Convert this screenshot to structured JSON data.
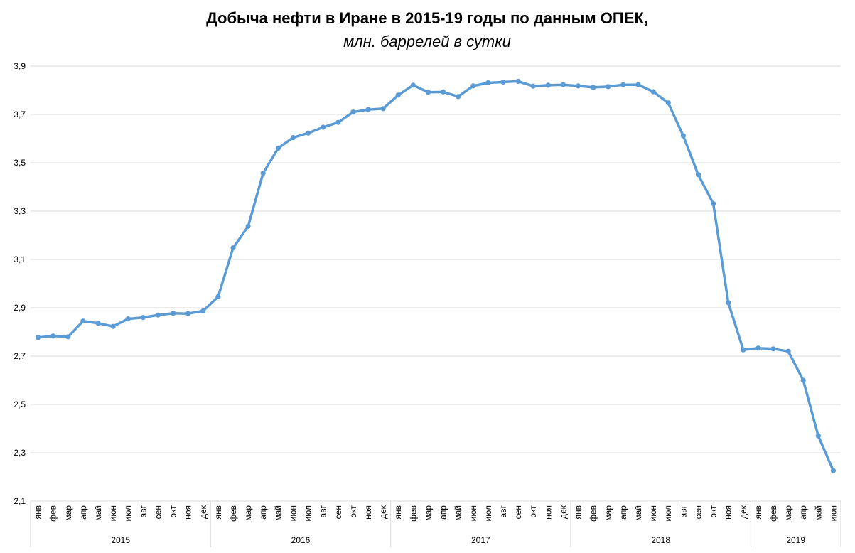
{
  "chart_data": {
    "type": "line",
    "title": "Добыча нефти в Иране в 2015-19 годы по данным ОПЕК,",
    "subtitle": "млн. баррелей в сутки",
    "xlabel": "",
    "ylabel": "",
    "ylim": [
      2.1,
      3.9
    ],
    "yticks": [
      2.1,
      2.3,
      2.5,
      2.7,
      2.9,
      3.1,
      3.3,
      3.5,
      3.7,
      3.9
    ],
    "ytick_labels": [
      "2,1",
      "2,3",
      "2,5",
      "2,7",
      "2,9",
      "3,1",
      "3,3",
      "3,5",
      "3,7",
      "3,9"
    ],
    "grid": true,
    "legend": "none",
    "line_color": "#5b9bd5",
    "groups": [
      {
        "label": "2015",
        "months": [
          "янв",
          "фев",
          "мар",
          "апр",
          "май",
          "июн",
          "июл",
          "авг",
          "сен",
          "окт",
          "ноя",
          "дек"
        ]
      },
      {
        "label": "2016",
        "months": [
          "янв",
          "фев",
          "мар",
          "апр",
          "май",
          "июн",
          "июл",
          "авг",
          "сен",
          "окт",
          "ноя",
          "дек"
        ]
      },
      {
        "label": "2017",
        "months": [
          "янв",
          "фев",
          "мар",
          "апр",
          "май",
          "июн",
          "июл",
          "авг",
          "сен",
          "окт",
          "ноя",
          "дек"
        ]
      },
      {
        "label": "2018",
        "months": [
          "янв",
          "фев",
          "мар",
          "апр",
          "май",
          "июн",
          "июл",
          "авг",
          "сен",
          "окт",
          "ноя",
          "дек"
        ]
      },
      {
        "label": "2019",
        "months": [
          "янв",
          "фев",
          "мар",
          "апр",
          "май",
          "июн"
        ]
      }
    ],
    "series": [
      {
        "values": [
          2.777,
          2.783,
          2.78,
          2.845,
          2.836,
          2.823,
          2.854,
          2.86,
          2.87,
          2.877,
          2.876,
          2.887,
          2.946,
          3.148,
          3.237,
          3.457,
          3.56,
          3.604,
          3.623,
          3.647,
          3.667,
          3.71,
          3.72,
          3.724,
          3.78,
          3.821,
          3.792,
          3.793,
          3.774,
          3.818,
          3.831,
          3.834,
          3.837,
          3.817,
          3.821,
          3.823,
          3.818,
          3.812,
          3.815,
          3.823,
          3.823,
          3.794,
          3.748,
          3.612,
          3.451,
          3.331,
          2.921,
          2.726,
          2.733,
          2.73,
          2.72,
          2.6,
          2.37,
          2.226
        ]
      }
    ]
  }
}
